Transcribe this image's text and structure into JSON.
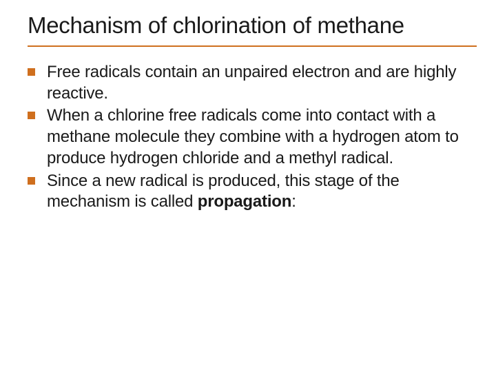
{
  "title": "Mechanism of chlorination of methane",
  "title_underline_color": "#cf6f1e",
  "text_color": "#1a1a1a",
  "background_color": "#ffffff",
  "bullet_color": "#cf6f1e",
  "title_fontsize": 33,
  "body_fontsize": 24,
  "bullets": [
    {
      "text": "Free radicals contain an unpaired electron and are highly reactive."
    },
    {
      "text": "When a chlorine free radicals come into contact with a methane molecule they combine with a hydrogen atom to produce hydrogen chloride and a methyl radical."
    },
    {
      "text_pre": "Since a new radical is produced, this stage of the mechanism is called ",
      "bold": "propagation",
      "text_post": ":"
    }
  ]
}
